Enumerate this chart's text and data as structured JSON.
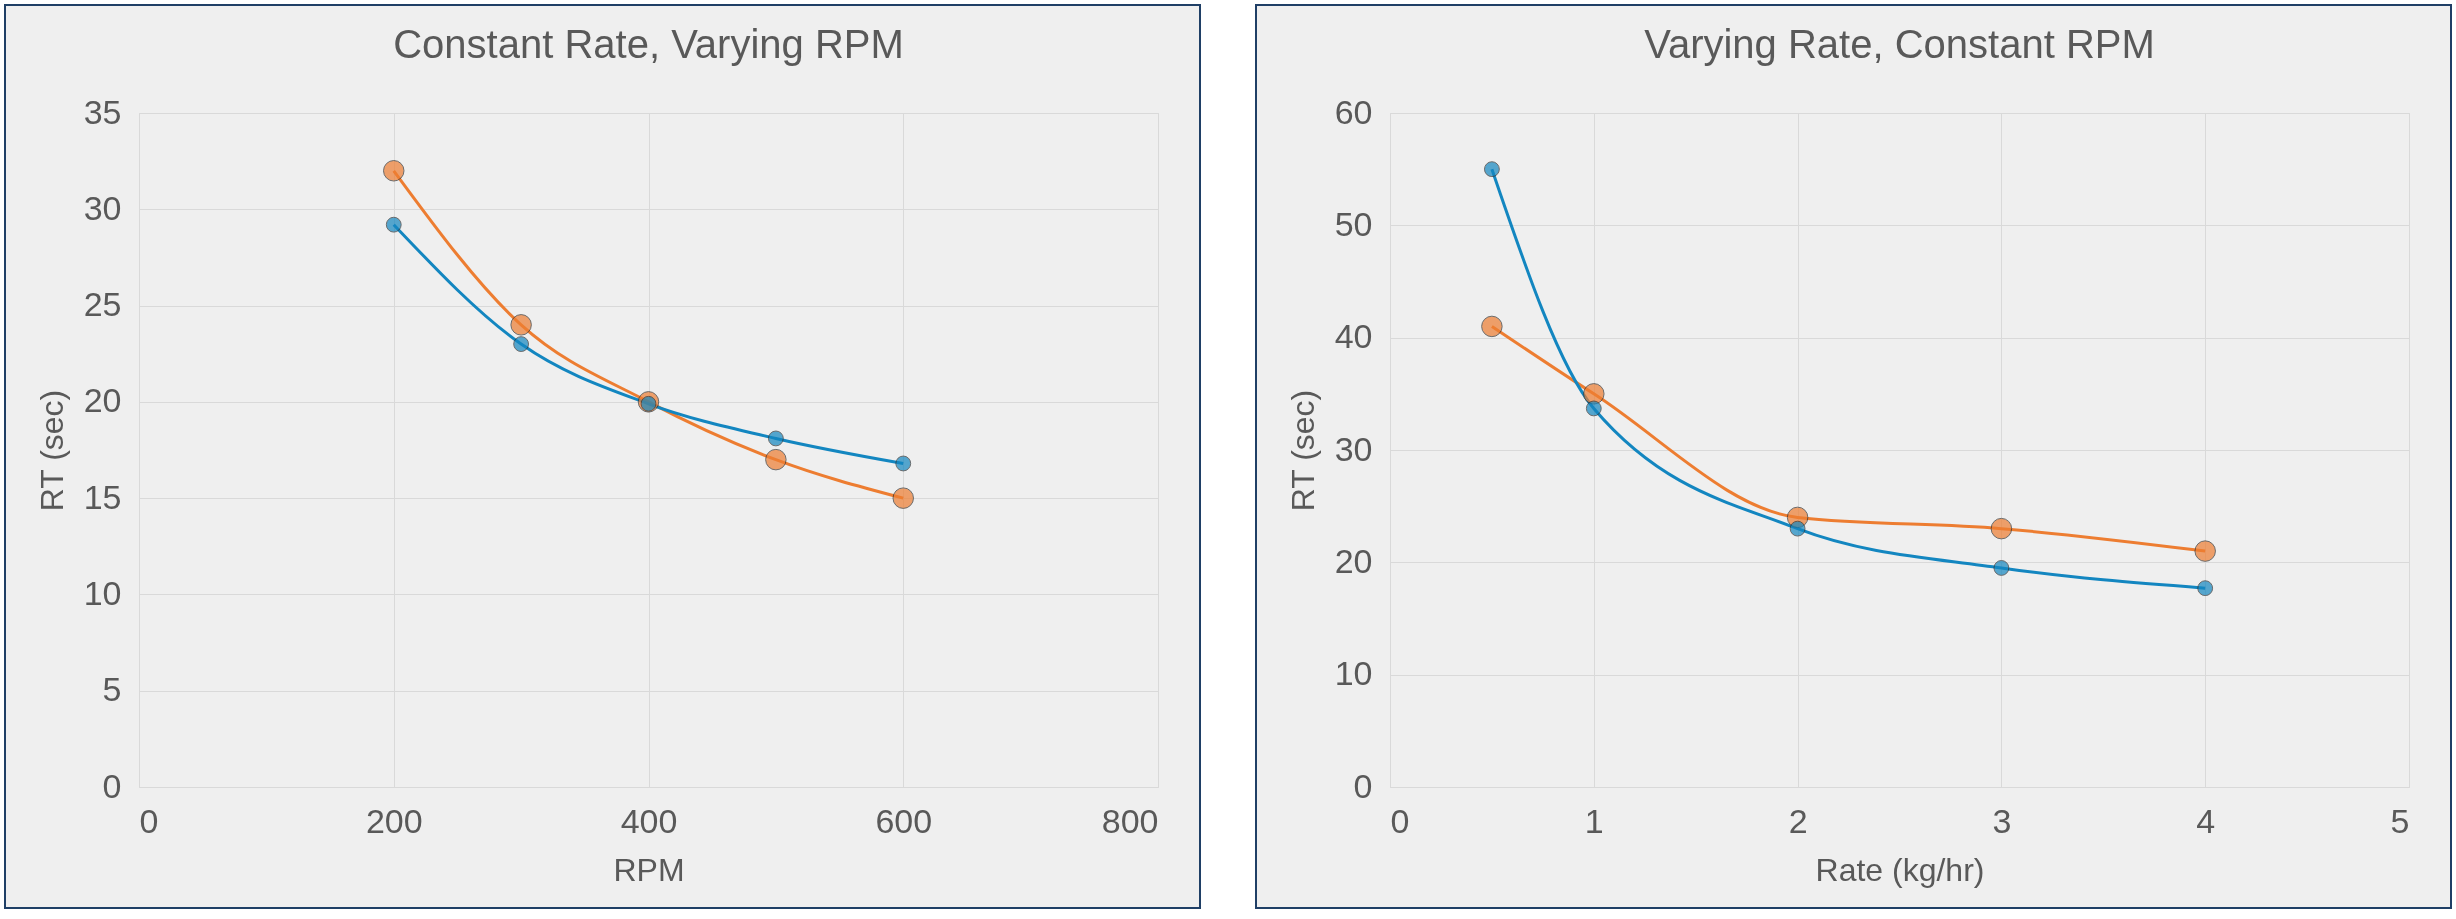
{
  "chart_data": [
    {
      "type": "line",
      "title": "Constant Rate, Varying RPM",
      "xlabel": "RPM",
      "ylabel": "RT (sec)",
      "x": [
        200,
        300,
        400,
        500,
        600
      ],
      "xlim": [
        0,
        800
      ],
      "xticks": [
        0,
        200,
        400,
        600,
        800
      ],
      "ylim": [
        0,
        35
      ],
      "yticks": [
        0,
        5,
        10,
        15,
        20,
        25,
        30,
        35
      ],
      "grid": true,
      "marker": "circle",
      "series": [
        {
          "color": "#ed7d31",
          "values": [
            32,
            24,
            20,
            17,
            15
          ]
        },
        {
          "color": "#1386c0",
          "values": [
            29.2,
            23,
            19.9,
            18.1,
            16.8
          ]
        }
      ]
    },
    {
      "type": "line",
      "title": "Varying Rate, Constant RPM",
      "xlabel": "Rate (kg/hr)",
      "ylabel": "RT (sec)",
      "x": [
        0.5,
        1,
        2,
        3,
        4
      ],
      "xlim": [
        0,
        5
      ],
      "xticks": [
        0,
        1,
        2,
        3,
        4,
        5
      ],
      "ylim": [
        0,
        60
      ],
      "yticks": [
        0,
        10,
        20,
        30,
        40,
        50,
        60
      ],
      "grid": true,
      "marker": "circle",
      "series": [
        {
          "color": "#ed7d31",
          "values": [
            41,
            35,
            24,
            23,
            21
          ]
        },
        {
          "color": "#1386c0",
          "values": [
            55,
            33.7,
            23,
            19.5,
            17.7
          ]
        }
      ]
    }
  ]
}
